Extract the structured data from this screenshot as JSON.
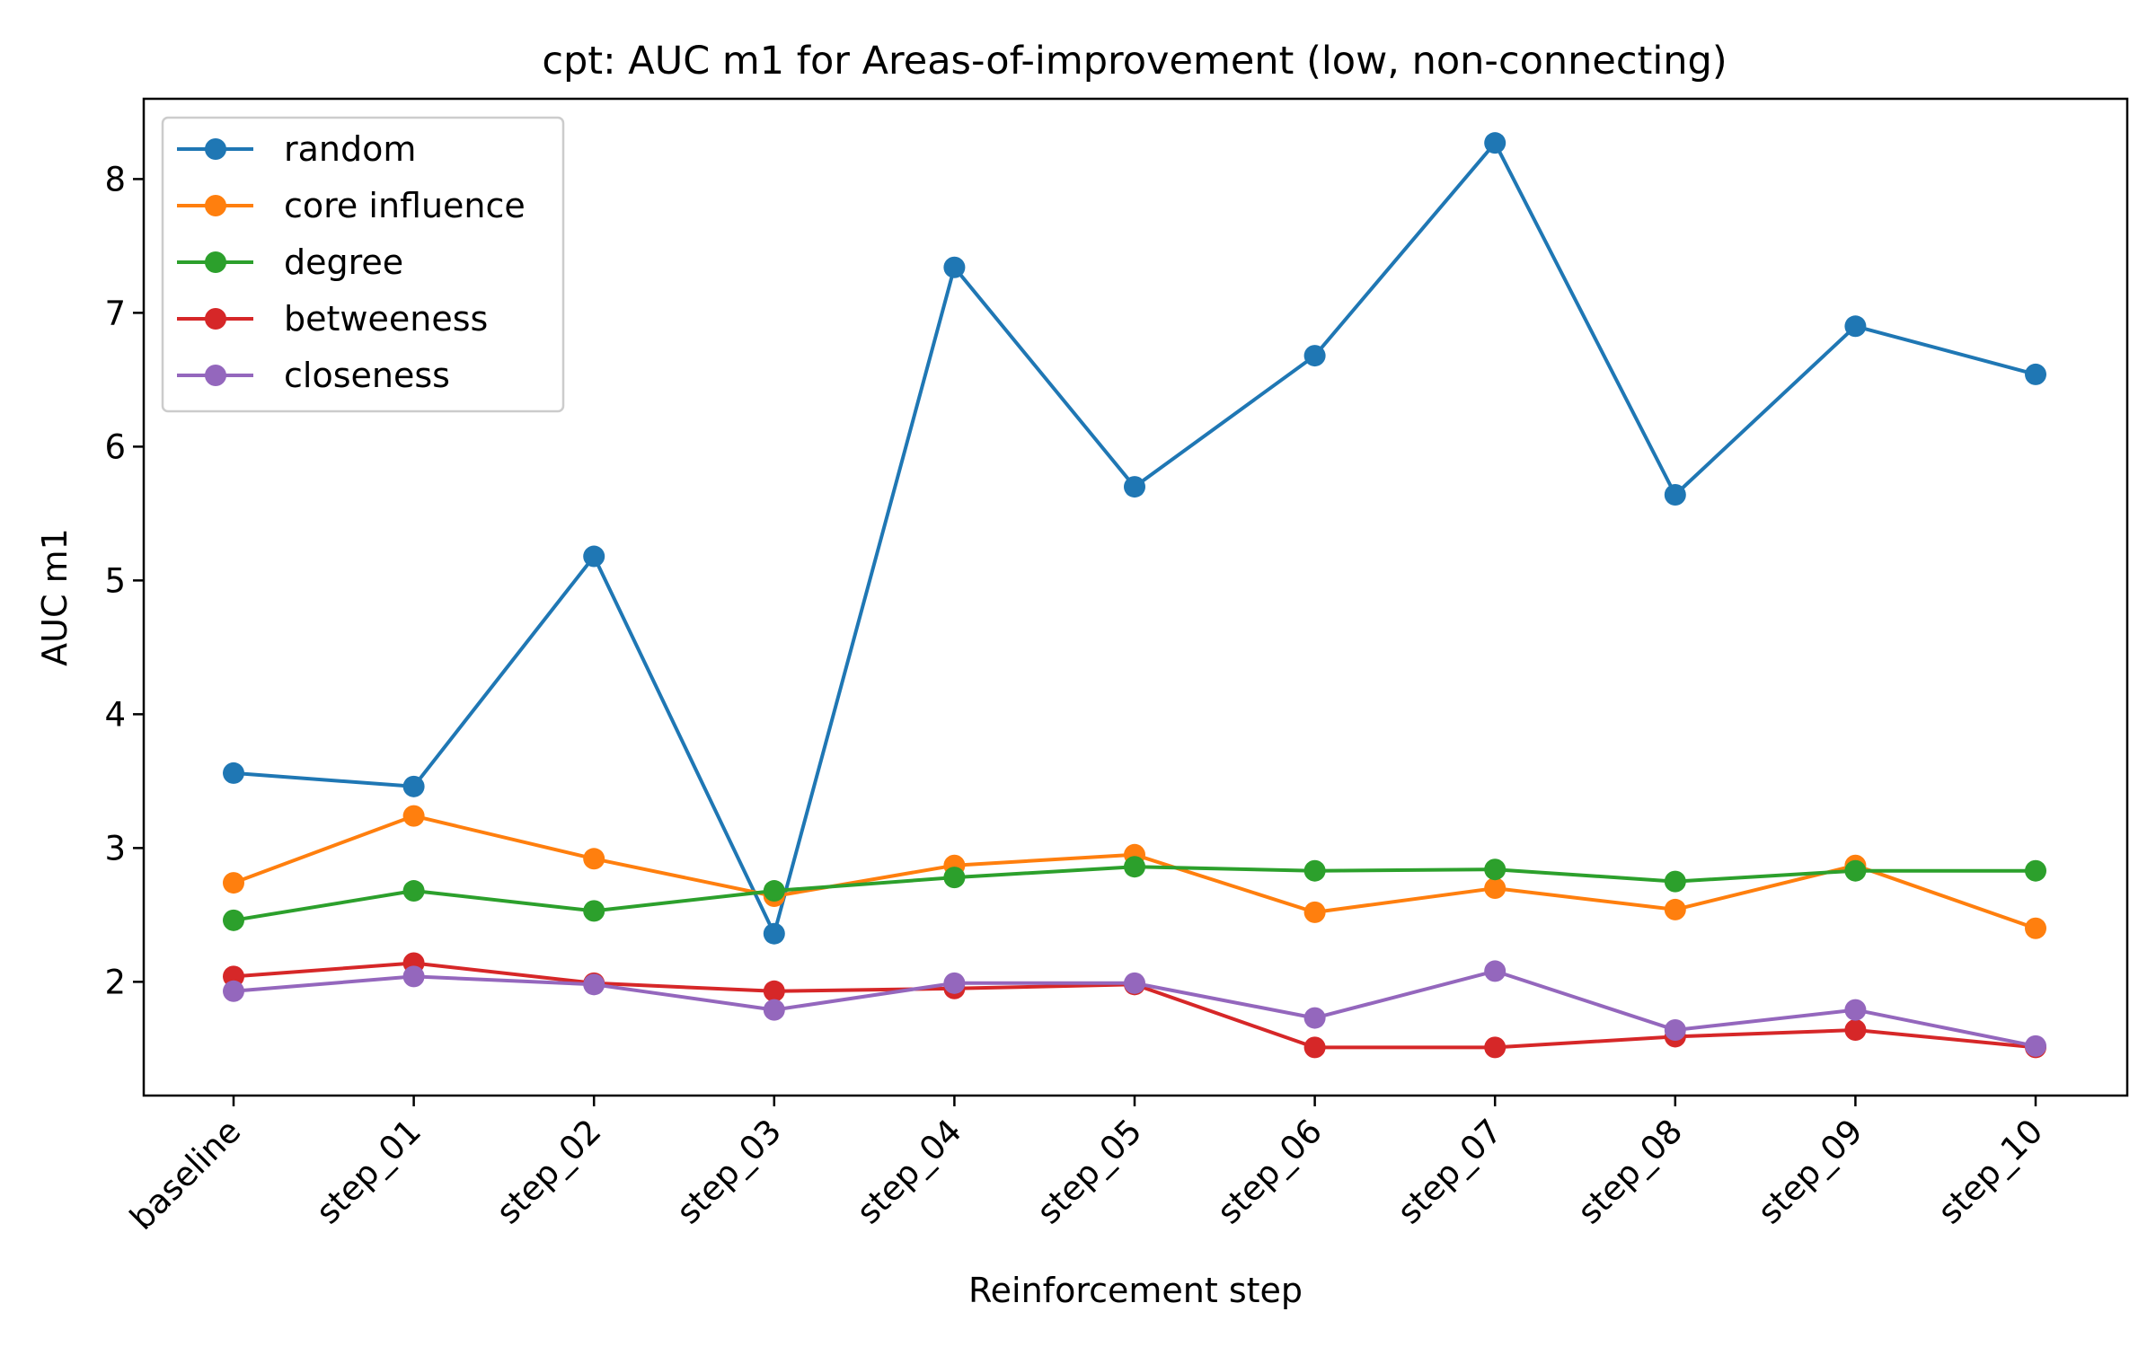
{
  "chart_data": {
    "type": "line",
    "title": "cpt: AUC m1 for Areas-of-improvement (low, non-connecting)",
    "xlabel": "Reinforcement step",
    "ylabel": "AUC m1",
    "categories": [
      "baseline",
      "step_01",
      "step_02",
      "step_03",
      "step_04",
      "step_05",
      "step_06",
      "step_07",
      "step_08",
      "step_09",
      "step_10"
    ],
    "y_ticks": [
      2,
      3,
      4,
      5,
      6,
      7,
      8
    ],
    "ylim": [
      1.15,
      8.6
    ],
    "grid": false,
    "legend_position": "top-left",
    "series": [
      {
        "name": "random",
        "color": "#1f77b4",
        "values": [
          3.56,
          3.46,
          5.18,
          2.36,
          7.34,
          5.7,
          6.68,
          8.27,
          5.64,
          6.9,
          6.54
        ]
      },
      {
        "name": "core influence",
        "color": "#ff7f0e",
        "values": [
          2.74,
          3.24,
          2.92,
          2.64,
          2.87,
          2.95,
          2.52,
          2.7,
          2.54,
          2.87,
          2.4
        ]
      },
      {
        "name": "degree",
        "color": "#2ca02c",
        "values": [
          2.46,
          2.68,
          2.53,
          2.68,
          2.78,
          2.86,
          2.83,
          2.84,
          2.75,
          2.83,
          2.83
        ]
      },
      {
        "name": "betweeness",
        "color": "#d62728",
        "values": [
          2.04,
          2.14,
          1.99,
          1.93,
          1.95,
          1.98,
          1.51,
          1.51,
          1.59,
          1.64,
          1.51
        ]
      },
      {
        "name": "closeness",
        "color": "#9467bd",
        "values": [
          1.93,
          2.04,
          1.98,
          1.79,
          1.99,
          1.99,
          1.73,
          2.08,
          1.64,
          1.79,
          1.52
        ]
      }
    ]
  }
}
